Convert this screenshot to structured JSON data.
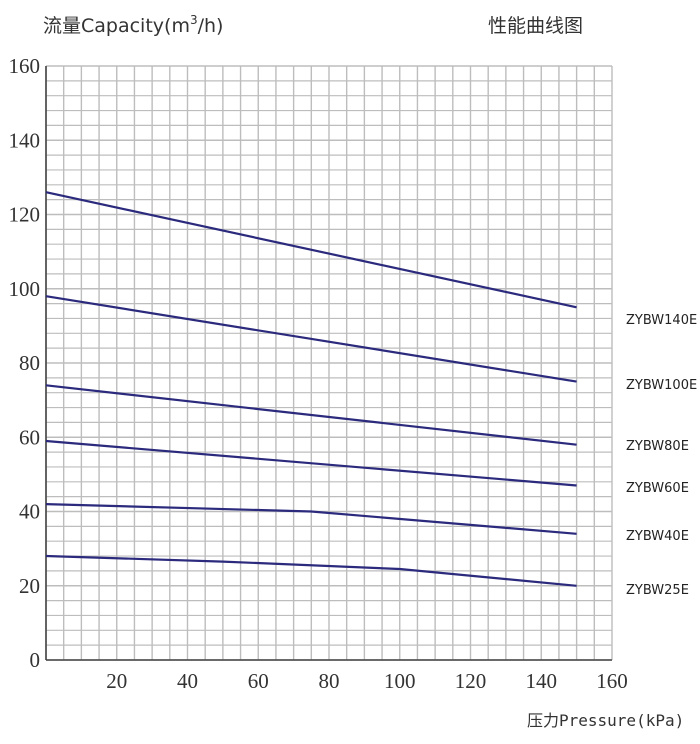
{
  "chart_data": {
    "type": "line",
    "title": "性能曲线图",
    "ylabel_prefix": "流量Capacity(m",
    "ylabel_sup": "3",
    "ylabel_suffix": "/h)",
    "xlabel": "压力Pressure(kPa)",
    "xlim": [
      0,
      160
    ],
    "ylim": [
      0,
      160
    ],
    "x_ticks": [
      20,
      40,
      60,
      80,
      100,
      120,
      140,
      160
    ],
    "y_ticks": [
      0,
      20,
      40,
      60,
      80,
      100,
      120,
      140,
      160
    ],
    "grid": true,
    "line_color": "#2b2a7d",
    "grid_color": "#bdbdbd",
    "series": [
      {
        "name": "ZYBW140E",
        "x": [
          0,
          150
        ],
        "y": [
          126,
          95
        ]
      },
      {
        "name": "ZYBW100E",
        "x": [
          0,
          150
        ],
        "y": [
          98,
          75
        ]
      },
      {
        "name": "ZYBW80E",
        "x": [
          0,
          150
        ],
        "y": [
          74,
          58
        ]
      },
      {
        "name": "ZYBW60E",
        "x": [
          0,
          150
        ],
        "y": [
          59,
          47
        ]
      },
      {
        "name": "ZYBW40E",
        "x": [
          0,
          75,
          150
        ],
        "y": [
          42,
          40,
          34
        ]
      },
      {
        "name": "ZYBW25E",
        "x": [
          0,
          50,
          100,
          150
        ],
        "y": [
          28,
          26.5,
          24.5,
          20
        ]
      }
    ]
  }
}
